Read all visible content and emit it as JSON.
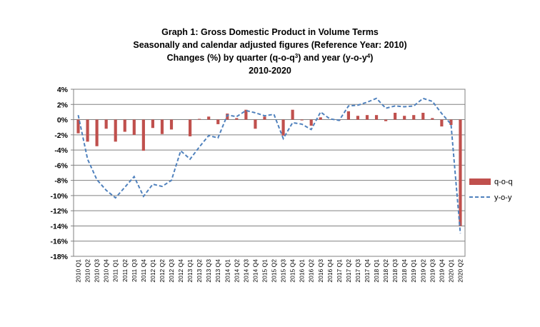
{
  "title": {
    "line1": "Graph 1: Gross Domestic Product in Volume Terms",
    "line2": "Seasonally and calendar adjusted figures (Reference Year: 2010)",
    "line3_pre": "Changes (%) by quarter (q-o-q",
    "line3_sup1": "3",
    "line3_mid": ") and year (y-o-y",
    "line3_sup2": "4",
    "line3_post": ")",
    "line4": "2010-2020"
  },
  "chart_data": {
    "type": "bar",
    "categories": [
      "2010 Q1",
      "2010 Q2",
      "2010 Q3",
      "2010 Q4",
      "2011 Q1",
      "2011 Q2",
      "2011 Q3",
      "2011 Q4",
      "2012 Q1",
      "2012 Q2",
      "2012 Q3",
      "2012 Q4",
      "2013 Q1",
      "2013 Q2",
      "2013 Q3",
      "2013 Q4",
      "2014 Q1",
      "2014 Q2",
      "2014 Q3",
      "2014 Q4",
      "2015 Q1",
      "2015 Q2",
      "2015 Q3",
      "2015 Q4",
      "2016 Q1",
      "2016 Q2",
      "2016 Q3",
      "2016 Q4",
      "2017 Q1",
      "2017 Q2",
      "2017 Q3",
      "2017 Q4",
      "2018 Q1",
      "2018 Q2",
      "2018 Q3",
      "2018 Q4",
      "2019 Q1",
      "2019 Q2",
      "2019 Q3",
      "2019 Q4",
      "2020 Q1",
      "2020 Q2"
    ],
    "series": [
      {
        "name": "q-o-q",
        "kind": "bar",
        "color": "#C0504D",
        "values": [
          -1.8,
          -2.9,
          -3.5,
          -1.2,
          -2.9,
          -1.6,
          -2.0,
          -4.1,
          -1.1,
          -1.9,
          -1.3,
          0.0,
          -2.2,
          0.1,
          0.4,
          -0.6,
          0.8,
          0.2,
          1.3,
          -1.2,
          0.4,
          0.0,
          -2.1,
          1.3,
          -0.1,
          -0.8,
          0.3,
          0.0,
          -0.1,
          1.1,
          0.5,
          0.6,
          0.6,
          -0.2,
          0.9,
          0.5,
          0.6,
          0.9,
          0.2,
          -0.9,
          -0.7,
          -14.0
        ]
      },
      {
        "name": "y-o-y",
        "kind": "line-dashed",
        "color": "#4F81BD",
        "values": [
          0.6,
          -5.2,
          -7.9,
          -9.3,
          -10.3,
          -8.9,
          -7.5,
          -10.1,
          -8.5,
          -8.8,
          -8.0,
          -4.1,
          -5.2,
          -3.6,
          -2.1,
          -2.4,
          0.6,
          0.4,
          1.2,
          0.9,
          0.5,
          0.7,
          -2.5,
          -0.4,
          -0.6,
          -1.3,
          1.0,
          0.1,
          -0.1,
          1.8,
          1.9,
          2.3,
          2.8,
          1.5,
          1.8,
          1.7,
          1.8,
          2.8,
          2.4,
          0.8,
          -0.6,
          -15.0
        ]
      }
    ],
    "ylim": [
      -18,
      4
    ],
    "yticks": [
      "4%",
      "2%",
      "0%",
      "-2%",
      "-4%",
      "-6%",
      "-8%",
      "-10%",
      "-12%",
      "-14%",
      "-16%",
      "-18%"
    ],
    "grid": true,
    "legend_position": "right",
    "xlabel": "",
    "ylabel": ""
  }
}
